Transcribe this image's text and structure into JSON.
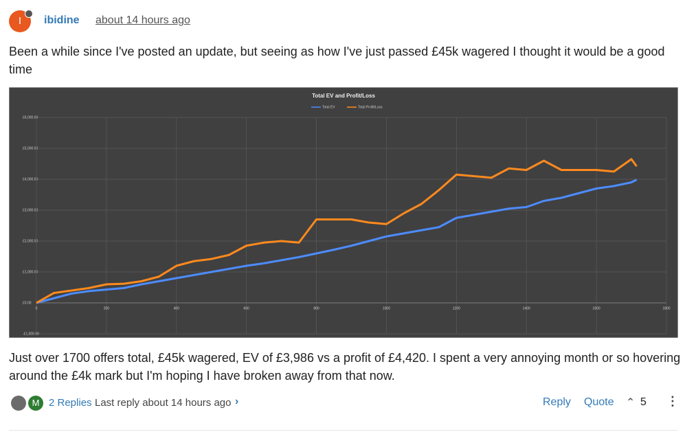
{
  "post": {
    "avatar": "I",
    "author": "ibidine",
    "time": "about 14 hours ago",
    "body": [
      "Been a while since I've posted an update, but seeing as how I've just passed £45k wagered I thought it would be a good time",
      "Just over 1700 offers total, £45k wagered, EV of £3,986 vs a profit of £4,420. I spent a very annoying month or so hovering around the £4k mark but I'm hoping I have broken away from that now."
    ],
    "replier": "M",
    "replies": "2 Replies",
    "last_reply": "Last reply about 14 hours ago",
    "reply": "Reply",
    "quote": "Quote",
    "votes": 5
  },
  "chart_data": {
    "type": "line",
    "title": "Total EV and Profit/Loss",
    "x": [
      0,
      50,
      100,
      150,
      200,
      250,
      300,
      350,
      400,
      450,
      500,
      550,
      600,
      650,
      700,
      750,
      800,
      850,
      900,
      950,
      1000,
      1050,
      1100,
      1150,
      1200,
      1250,
      1300,
      1350,
      1400,
      1450,
      1500,
      1550,
      1600,
      1650,
      1700,
      1715
    ],
    "series": [
      {
        "name": "Total EV",
        "color": "#4d8cff",
        "values": [
          0,
          150,
          300,
          380,
          430,
          480,
          600,
          700,
          800,
          900,
          1000,
          1100,
          1200,
          1280,
          1380,
          1480,
          1600,
          1720,
          1850,
          2000,
          2150,
          2250,
          2350,
          2450,
          2750,
          2850,
          2950,
          3050,
          3100,
          3300,
          3400,
          3550,
          3700,
          3780,
          3900,
          3986
        ]
      },
      {
        "name": "Total Profit/Loss",
        "color": "#ff8a1e",
        "values": [
          0,
          320,
          400,
          480,
          600,
          620,
          700,
          850,
          1200,
          1350,
          1420,
          1550,
          1850,
          1950,
          2000,
          1950,
          2700,
          2700,
          2700,
          2600,
          2550,
          2900,
          3200,
          3650,
          4150,
          4100,
          4050,
          4350,
          4300,
          4600,
          4300,
          4300,
          4300,
          4250,
          4650,
          4420
        ]
      }
    ],
    "xlim": [
      0,
      1800
    ],
    "xticks": [
      0,
      200,
      400,
      600,
      800,
      1000,
      1200,
      1400,
      1600,
      1800
    ],
    "ylim": [
      -1000,
      6000
    ],
    "yticks": [
      {
        "value": -1000,
        "label": "-£1,000.00"
      },
      {
        "value": 0,
        "label": "£0.00"
      },
      {
        "value": 1000,
        "label": "£1,000.00"
      },
      {
        "value": 2000,
        "label": "£2,000.00"
      },
      {
        "value": 3000,
        "label": "£3,000.00"
      },
      {
        "value": 4000,
        "label": "£4,000.00"
      },
      {
        "value": 5000,
        "label": "£5,000.00"
      },
      {
        "value": 6000,
        "label": "£6,000.00"
      }
    ],
    "grid": true,
    "legend": "top"
  }
}
